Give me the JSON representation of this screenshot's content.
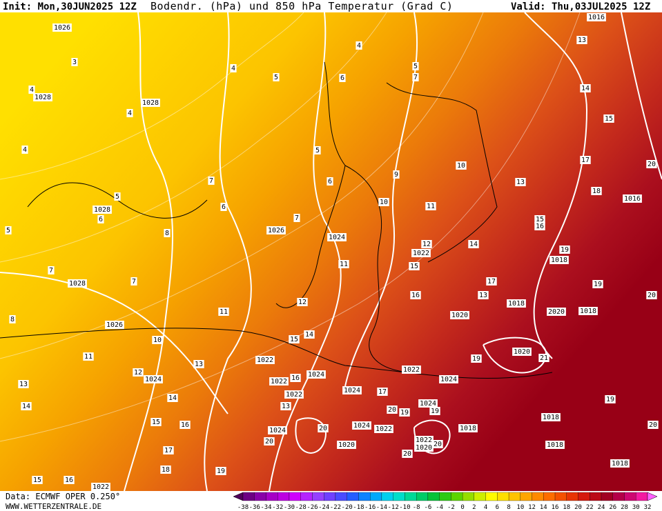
{
  "header": {
    "init": "Init: Mon,30JUN2025 12Z",
    "title": "Bodendr. (hPa) und 850 hPa Temperatur (Grad C)",
    "valid": "Valid: Thu,03JUL2025 12Z"
  },
  "footer": {
    "source": "Data: ECMWF OPER 0.250°",
    "site": "WWW.WETTERZENTRALE.DE"
  },
  "colorbar": {
    "labels": [
      "-38",
      "-36",
      "-34",
      "-32",
      "-30",
      "-28",
      "-26",
      "-24",
      "-22",
      "-20",
      "-18",
      "-16",
      "-14",
      "-12",
      "-10",
      "-8",
      "-6",
      "-4",
      "-2",
      "0",
      "2",
      "4",
      "6",
      "8",
      "10",
      "12",
      "14",
      "16",
      "18",
      "20",
      "22",
      "24",
      "26",
      "28",
      "30",
      "32"
    ]
  },
  "contour_labels": [
    "1026",
    "3",
    "4",
    "1028",
    "4",
    "1028",
    "4",
    "5",
    "4",
    "5",
    "1028",
    "6",
    "5",
    "7",
    "6",
    "8",
    "1026",
    "7",
    "6",
    "5",
    "6",
    "4",
    "5",
    "7",
    "10",
    "10",
    "11",
    "9",
    "1024",
    "12",
    "1022",
    "15",
    "11",
    "7",
    "1028",
    "7",
    "8",
    "1026",
    "10",
    "11",
    "12",
    "15",
    "14",
    "11",
    "13",
    "12",
    "1024",
    "1022",
    "1024",
    "1022",
    "1024",
    "1020",
    "1018",
    "1018",
    "2020",
    "1018",
    "13",
    "17",
    "14",
    "16",
    "15",
    "18",
    "17",
    "13",
    "14",
    "15",
    "20",
    "1016",
    "1016",
    "13",
    "19",
    "19",
    "20",
    "1020",
    "21",
    "19",
    "1024",
    "17",
    "20",
    "19",
    "1024",
    "19",
    "1018",
    "19",
    "20",
    "1018",
    "1024",
    "1022",
    "1024",
    "20",
    "20",
    "1022",
    "1020",
    "20",
    "1020",
    "20",
    "1018",
    "1018",
    "16",
    "1022",
    "1022",
    "13",
    "14",
    "14",
    "13",
    "15",
    "16",
    "17",
    "18",
    "19",
    "15",
    "16",
    "1022",
    "16"
  ]
}
